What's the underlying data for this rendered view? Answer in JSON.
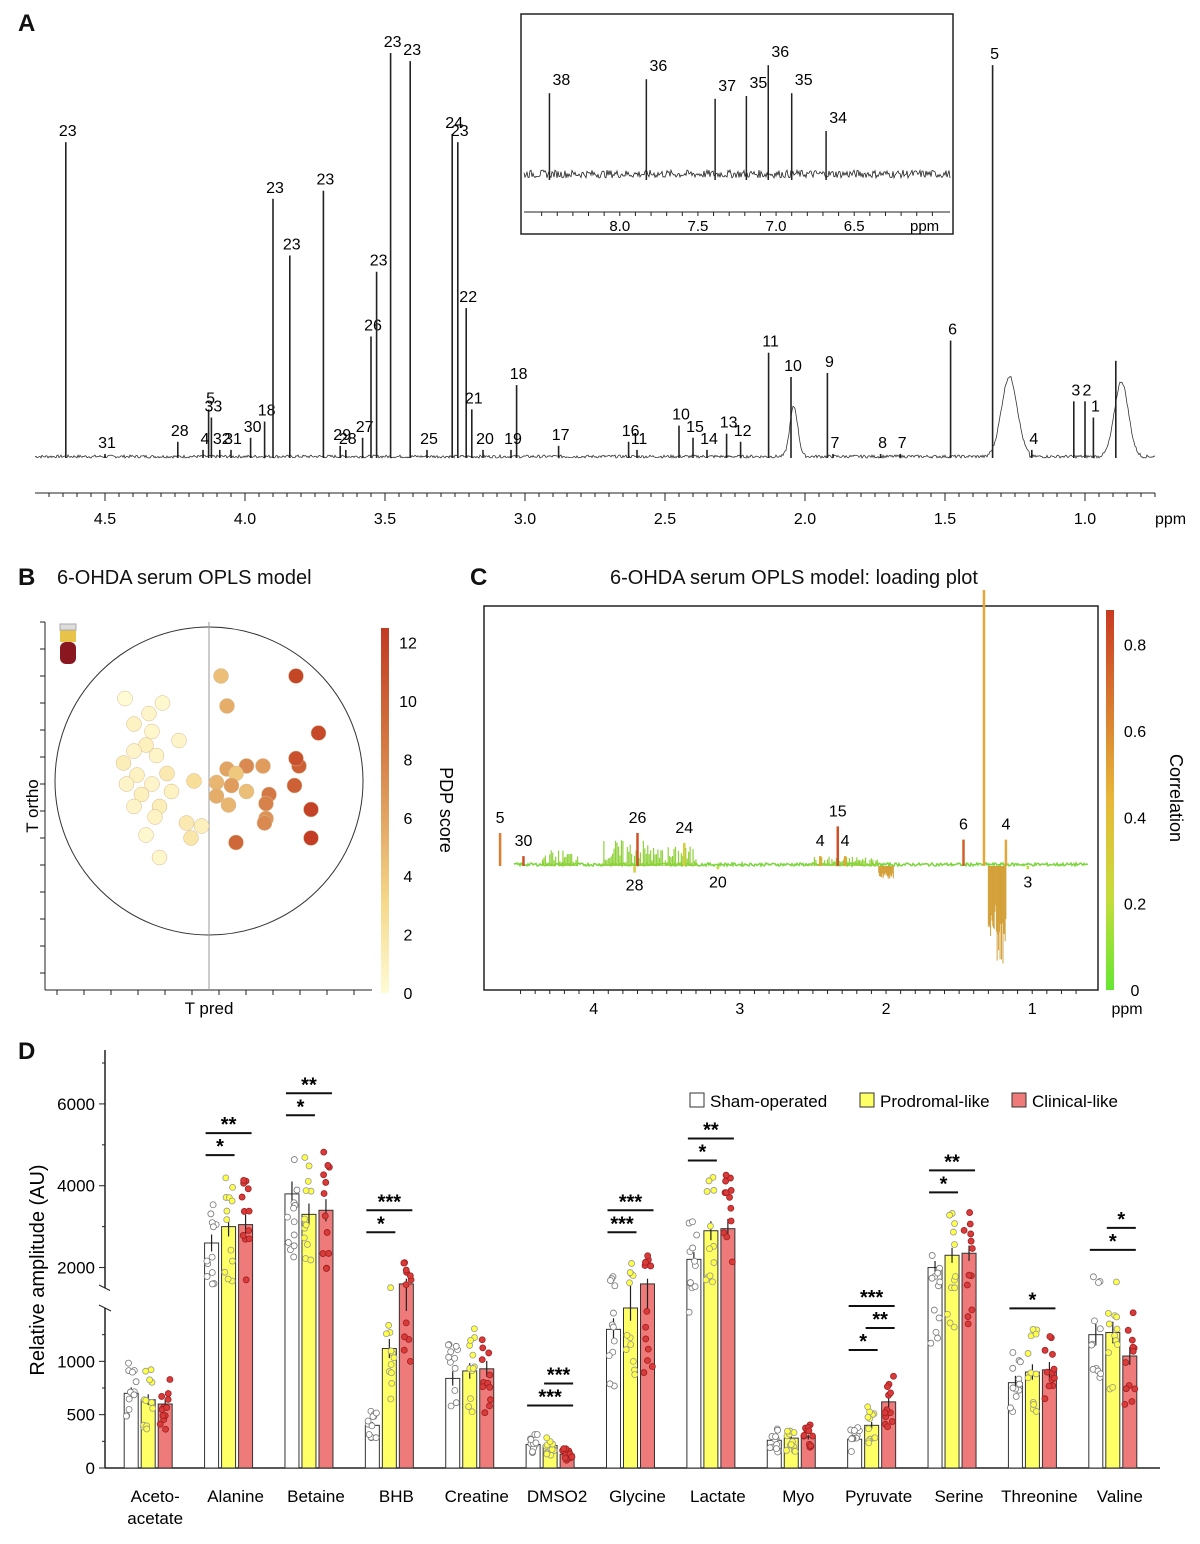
{
  "chart_data": [
    {
      "panel": "A",
      "type": "line",
      "title": "",
      "xlabel": "ppm",
      "xlim": [
        4.75,
        0.75
      ],
      "x_ticks": [
        4.5,
        4.0,
        3.5,
        3.0,
        2.5,
        2.0,
        1.5,
        1.0
      ],
      "x_tick_labels": [
        "4.5",
        "4.0",
        "3.5",
        "3.0",
        "2.5",
        "2.0",
        "1.5",
        "1.0"
      ],
      "peaks": [
        {
          "ppm": 4.64,
          "height": 0.78,
          "label": "23"
        },
        {
          "ppm": 4.5,
          "height": 0.01,
          "label": "31"
        },
        {
          "ppm": 4.24,
          "height": 0.04,
          "label": "28"
        },
        {
          "ppm": 4.13,
          "height": 0.12,
          "label": "5"
        },
        {
          "ppm": 4.12,
          "height": 0.1,
          "label": "33"
        },
        {
          "ppm": 4.15,
          "height": 0.02,
          "label": "4"
        },
        {
          "ppm": 4.09,
          "height": 0.02,
          "label": "32"
        },
        {
          "ppm": 4.05,
          "height": 0.02,
          "label": "31"
        },
        {
          "ppm": 3.98,
          "height": 0.05,
          "label": "30"
        },
        {
          "ppm": 3.93,
          "height": 0.09,
          "label": "18"
        },
        {
          "ppm": 3.9,
          "height": 0.64,
          "label": "23"
        },
        {
          "ppm": 3.84,
          "height": 0.5,
          "label": "23"
        },
        {
          "ppm": 3.72,
          "height": 0.66,
          "label": "23"
        },
        {
          "ppm": 3.66,
          "height": 0.03,
          "label": "29"
        },
        {
          "ppm": 3.64,
          "height": 0.02,
          "label": "28"
        },
        {
          "ppm": 3.58,
          "height": 0.05,
          "label": "27"
        },
        {
          "ppm": 3.55,
          "height": 0.3,
          "label": "26"
        },
        {
          "ppm": 3.53,
          "height": 0.46,
          "label": "23"
        },
        {
          "ppm": 3.48,
          "height": 1.0,
          "label": "23"
        },
        {
          "ppm": 3.41,
          "height": 0.98,
          "label": "23"
        },
        {
          "ppm": 3.35,
          "height": 0.02,
          "label": "25"
        },
        {
          "ppm": 3.26,
          "height": 0.8,
          "label": "24"
        },
        {
          "ppm": 3.24,
          "height": 0.78,
          "label": "23"
        },
        {
          "ppm": 3.21,
          "height": 0.37,
          "label": "22"
        },
        {
          "ppm": 3.19,
          "height": 0.12,
          "label": "21"
        },
        {
          "ppm": 3.15,
          "height": 0.02,
          "label": "20"
        },
        {
          "ppm": 3.03,
          "height": 0.18,
          "label": "18"
        },
        {
          "ppm": 3.05,
          "height": 0.02,
          "label": "19"
        },
        {
          "ppm": 2.88,
          "height": 0.03,
          "label": "17"
        },
        {
          "ppm": 2.63,
          "height": 0.04,
          "label": "16"
        },
        {
          "ppm": 2.6,
          "height": 0.02,
          "label": "11"
        },
        {
          "ppm": 2.45,
          "height": 0.08,
          "label": "10"
        },
        {
          "ppm": 2.4,
          "height": 0.05,
          "label": "15"
        },
        {
          "ppm": 2.35,
          "height": 0.02,
          "label": "14"
        },
        {
          "ppm": 2.28,
          "height": 0.06,
          "label": "13"
        },
        {
          "ppm": 2.23,
          "height": 0.04,
          "label": "12"
        },
        {
          "ppm": 2.13,
          "height": 0.26,
          "label": "11"
        },
        {
          "ppm": 2.05,
          "height": 0.2,
          "label": "10"
        },
        {
          "ppm": 1.92,
          "height": 0.21,
          "label": "9"
        },
        {
          "ppm": 1.9,
          "height": 0.01,
          "label": "7"
        },
        {
          "ppm": 1.73,
          "height": 0.01,
          "label": "8"
        },
        {
          "ppm": 1.66,
          "height": 0.01,
          "label": "7"
        },
        {
          "ppm": 1.48,
          "height": 0.29,
          "label": "6"
        },
        {
          "ppm": 1.33,
          "height": 0.97,
          "label": "5"
        },
        {
          "ppm": 1.19,
          "height": 0.02,
          "label": "4"
        },
        {
          "ppm": 1.04,
          "height": 0.14,
          "label": "3"
        },
        {
          "ppm": 1.0,
          "height": 0.14,
          "label": "2"
        },
        {
          "ppm": 0.97,
          "height": 0.1,
          "label": "1"
        },
        {
          "ppm": 0.89,
          "height": 0.24,
          "label": ""
        }
      ],
      "inset": {
        "xlabel": "ppm",
        "xlim": [
          8.6,
          5.9
        ],
        "x_ticks": [
          8.0,
          7.5,
          7.0,
          6.5
        ],
        "x_tick_labels": [
          "8.0",
          "7.5",
          "7.0",
          "6.5"
        ],
        "peaks": [
          {
            "ppm": 8.45,
            "height": 0.62,
            "label": "38"
          },
          {
            "ppm": 7.83,
            "height": 0.72,
            "label": "36"
          },
          {
            "ppm": 7.39,
            "height": 0.58,
            "label": "37"
          },
          {
            "ppm": 7.19,
            "height": 0.6,
            "label": "35"
          },
          {
            "ppm": 7.05,
            "height": 0.82,
            "label": "36"
          },
          {
            "ppm": 6.9,
            "height": 0.62,
            "label": "35"
          },
          {
            "ppm": 6.68,
            "height": 0.35,
            "label": "34"
          }
        ]
      }
    },
    {
      "panel": "B",
      "type": "scatter",
      "title": "6-OHDA serum OPLS model",
      "xlabel": "T pred",
      "ylabel": "T ortho",
      "colorbar_label": "PDP score",
      "colorbar_ticks": [
        0,
        2,
        4,
        6,
        8,
        10,
        12
      ],
      "colorbar_range": [
        0,
        12.5
      ],
      "colorbar_colors": [
        "#fffbd5",
        "#f5d88a",
        "#e0a060",
        "#d06a3a",
        "#c23a22"
      ],
      "xlim": [
        -1,
        1
      ],
      "ylim": [
        -1,
        1
      ],
      "points": [
        {
          "x": -0.56,
          "y": 0.55,
          "score": 0
        },
        {
          "x": -0.4,
          "y": 0.45,
          "score": 0.5
        },
        {
          "x": -0.31,
          "y": 0.52,
          "score": 0.3
        },
        {
          "x": -0.5,
          "y": 0.38,
          "score": 0.8
        },
        {
          "x": -0.38,
          "y": 0.33,
          "score": 0.4
        },
        {
          "x": -0.42,
          "y": 0.24,
          "score": 1.0
        },
        {
          "x": -0.2,
          "y": 0.27,
          "score": 0.5
        },
        {
          "x": -0.5,
          "y": 0.2,
          "score": 0.5
        },
        {
          "x": -0.57,
          "y": 0.12,
          "score": 1.2
        },
        {
          "x": -0.35,
          "y": 0.17,
          "score": 0.6
        },
        {
          "x": -0.48,
          "y": 0.04,
          "score": 0.8
        },
        {
          "x": -0.28,
          "y": 0.05,
          "score": 1.5
        },
        {
          "x": -0.1,
          "y": 0.0,
          "score": 2.5
        },
        {
          "x": -0.55,
          "y": -0.02,
          "score": 0.6
        },
        {
          "x": -0.38,
          "y": -0.02,
          "score": 0.5
        },
        {
          "x": -0.25,
          "y": -0.07,
          "score": 0.8
        },
        {
          "x": -0.45,
          "y": -0.09,
          "score": 1.0
        },
        {
          "x": -0.33,
          "y": -0.17,
          "score": 1.2
        },
        {
          "x": -0.5,
          "y": -0.17,
          "score": 0.5
        },
        {
          "x": -0.36,
          "y": -0.24,
          "score": 0.7
        },
        {
          "x": -0.15,
          "y": -0.28,
          "score": 1.5
        },
        {
          "x": -0.05,
          "y": -0.3,
          "score": 1.0
        },
        {
          "x": -0.42,
          "y": -0.36,
          "score": 0.3
        },
        {
          "x": -0.12,
          "y": -0.38,
          "score": 1.8
        },
        {
          "x": -0.33,
          "y": -0.51,
          "score": 0.4
        },
        {
          "x": 0.08,
          "y": 0.7,
          "score": 4.5
        },
        {
          "x": 0.12,
          "y": 0.5,
          "score": 5.5
        },
        {
          "x": 0.25,
          "y": 0.1,
          "score": 7.5
        },
        {
          "x": 0.12,
          "y": 0.08,
          "score": 6.0
        },
        {
          "x": 0.18,
          "y": 0.05,
          "score": 4.0
        },
        {
          "x": 0.15,
          "y": -0.03,
          "score": 6.5
        },
        {
          "x": 0.05,
          "y": -0.01,
          "score": 5.0
        },
        {
          "x": 0.05,
          "y": -0.1,
          "score": 5.5
        },
        {
          "x": 0.13,
          "y": -0.16,
          "score": 5.0
        },
        {
          "x": 0.25,
          "y": -0.07,
          "score": 4.5
        },
        {
          "x": 0.36,
          "y": 0.1,
          "score": 6.5
        },
        {
          "x": 0.4,
          "y": -0.09,
          "score": 8.5
        },
        {
          "x": 0.38,
          "y": -0.15,
          "score": 8.0
        },
        {
          "x": 0.38,
          "y": -0.25,
          "score": 7.0
        },
        {
          "x": 0.37,
          "y": -0.28,
          "score": 7.5
        },
        {
          "x": 0.18,
          "y": -0.41,
          "score": 9.5
        },
        {
          "x": 0.6,
          "y": 0.1,
          "score": 10.0
        },
        {
          "x": 0.58,
          "y": 0.15,
          "score": 11.0
        },
        {
          "x": 0.57,
          "y": -0.03,
          "score": 10.0
        },
        {
          "x": 0.73,
          "y": 0.32,
          "score": 11.5
        },
        {
          "x": 0.58,
          "y": 0.7,
          "score": 11.8
        },
        {
          "x": 0.68,
          "y": -0.19,
          "score": 12.0
        },
        {
          "x": 0.68,
          "y": -0.38,
          "score": 12.3
        }
      ]
    },
    {
      "panel": "C",
      "type": "line",
      "title": "6-OHDA serum OPLS model: loading plot",
      "xlabel": "ppm",
      "colorbar_label": "Correlation",
      "colorbar_ticks": [
        0,
        0.2,
        0.4,
        0.6,
        0.8
      ],
      "colorbar_range": [
        0,
        0.88
      ],
      "xlim": [
        4.75,
        0.55
      ],
      "x_ticks": [
        4,
        3,
        2,
        1
      ],
      "x_tick_labels": [
        "4",
        "3",
        "2",
        "1"
      ],
      "loadings": [
        {
          "ppm": 4.64,
          "value": 0.1,
          "corr": 0.65,
          "label": "5"
        },
        {
          "ppm": 4.48,
          "value": 0.03,
          "corr": 0.8,
          "label": "30"
        },
        {
          "ppm": 3.72,
          "value": -0.02,
          "corr": 0.3,
          "label": "28"
        },
        {
          "ppm": 3.7,
          "value": 0.1,
          "corr": 0.8,
          "label": "26"
        },
        {
          "ppm": 3.38,
          "value": 0.07,
          "corr": 0.3,
          "label": "24"
        },
        {
          "ppm": 3.15,
          "value": -0.01,
          "corr": 0.2,
          "label": "20"
        },
        {
          "ppm": 2.45,
          "value": 0.03,
          "corr": 0.5,
          "label": "4"
        },
        {
          "ppm": 2.33,
          "value": 0.12,
          "corr": 0.8,
          "label": "15"
        },
        {
          "ppm": 2.28,
          "value": 0.03,
          "corr": 0.5,
          "label": "4"
        },
        {
          "ppm": 1.47,
          "value": 0.08,
          "corr": 0.75,
          "label": "6"
        },
        {
          "ppm": 1.33,
          "value": 0.85,
          "corr": 0.5,
          "label": "5"
        },
        {
          "ppm": 1.18,
          "value": 0.08,
          "corr": 0.5,
          "label": "4"
        },
        {
          "ppm": 1.03,
          "value": -0.01,
          "corr": 0.2,
          "label": "3"
        }
      ]
    },
    {
      "panel": "D",
      "type": "bar",
      "ylabel": "Relative amplitude (AU)",
      "y_ticks_lower": [
        0,
        500,
        1000
      ],
      "y_ticks_upper": [
        2000,
        4000,
        6000
      ],
      "axis_break": [
        1500,
        1500
      ],
      "ylim": [
        0,
        7000
      ],
      "legend": {
        "position": "top-right",
        "entries": [
          "Sham-operated",
          "Prodromal-like",
          "Clinical-like"
        ]
      },
      "series_colors": [
        "#ffffff",
        "#ffff66",
        "#ef7a7a"
      ],
      "categories": [
        "Aceto-\nacetate",
        "Alanine",
        "Betaine",
        "BHB",
        "Creatine",
        "DMSO2",
        "Glycine",
        "Lactate",
        "Myo",
        "Pyruvate",
        "Serine",
        "Threonine",
        "Valine"
      ],
      "series": [
        {
          "name": "Sham-operated",
          "values": [
            700,
            2600,
            3800,
            400,
            840,
            220,
            1300,
            2200,
            260,
            270,
            2000,
            800,
            1250
          ]
        },
        {
          "name": "Prodromal-like",
          "values": [
            640,
            3000,
            3300,
            1120,
            910,
            210,
            1500,
            2900,
            280,
            400,
            2300,
            900,
            1270
          ]
        },
        {
          "name": "Clinical-like",
          "values": [
            600,
            3050,
            3400,
            1600,
            930,
            130,
            1600,
            2950,
            290,
            620,
            2350,
            920,
            1050
          ]
        }
      ],
      "significance": [
        {
          "category": "Alanine",
          "pair": [
            0,
            1
          ],
          "stars": "*"
        },
        {
          "category": "Alanine",
          "pair": [
            0,
            2
          ],
          "stars": "**"
        },
        {
          "category": "Betaine",
          "pair": [
            0,
            1
          ],
          "stars": "*"
        },
        {
          "category": "Betaine",
          "pair": [
            0,
            2
          ],
          "stars": "**"
        },
        {
          "category": "BHB",
          "pair": [
            0,
            1
          ],
          "stars": "*"
        },
        {
          "category": "BHB",
          "pair": [
            0,
            2
          ],
          "stars": "***"
        },
        {
          "category": "DMSO2",
          "pair": [
            0,
            2
          ],
          "stars": "***"
        },
        {
          "category": "DMSO2",
          "pair": [
            1,
            2
          ],
          "stars": "***"
        },
        {
          "category": "Glycine",
          "pair": [
            0,
            1
          ],
          "stars": "***"
        },
        {
          "category": "Glycine",
          "pair": [
            0,
            2
          ],
          "stars": "***"
        },
        {
          "category": "Lactate",
          "pair": [
            0,
            1
          ],
          "stars": "*"
        },
        {
          "category": "Lactate",
          "pair": [
            0,
            2
          ],
          "stars": "**"
        },
        {
          "category": "Pyruvate",
          "pair": [
            0,
            1
          ],
          "stars": "*"
        },
        {
          "category": "Pyruvate",
          "pair": [
            1,
            2
          ],
          "stars": "**"
        },
        {
          "category": "Pyruvate",
          "pair": [
            0,
            2
          ],
          "stars": "***"
        },
        {
          "category": "Serine",
          "pair": [
            0,
            1
          ],
          "stars": "*"
        },
        {
          "category": "Serine",
          "pair": [
            0,
            2
          ],
          "stars": "**"
        },
        {
          "category": "Threonine",
          "pair": [
            0,
            2
          ],
          "stars": "*"
        },
        {
          "category": "Valine",
          "pair": [
            0,
            2
          ],
          "stars": "*"
        },
        {
          "category": "Valine",
          "pair": [
            1,
            2
          ],
          "stars": "*"
        }
      ]
    }
  ],
  "panels": {
    "a": "A",
    "b": "B",
    "c": "C",
    "d": "D"
  }
}
